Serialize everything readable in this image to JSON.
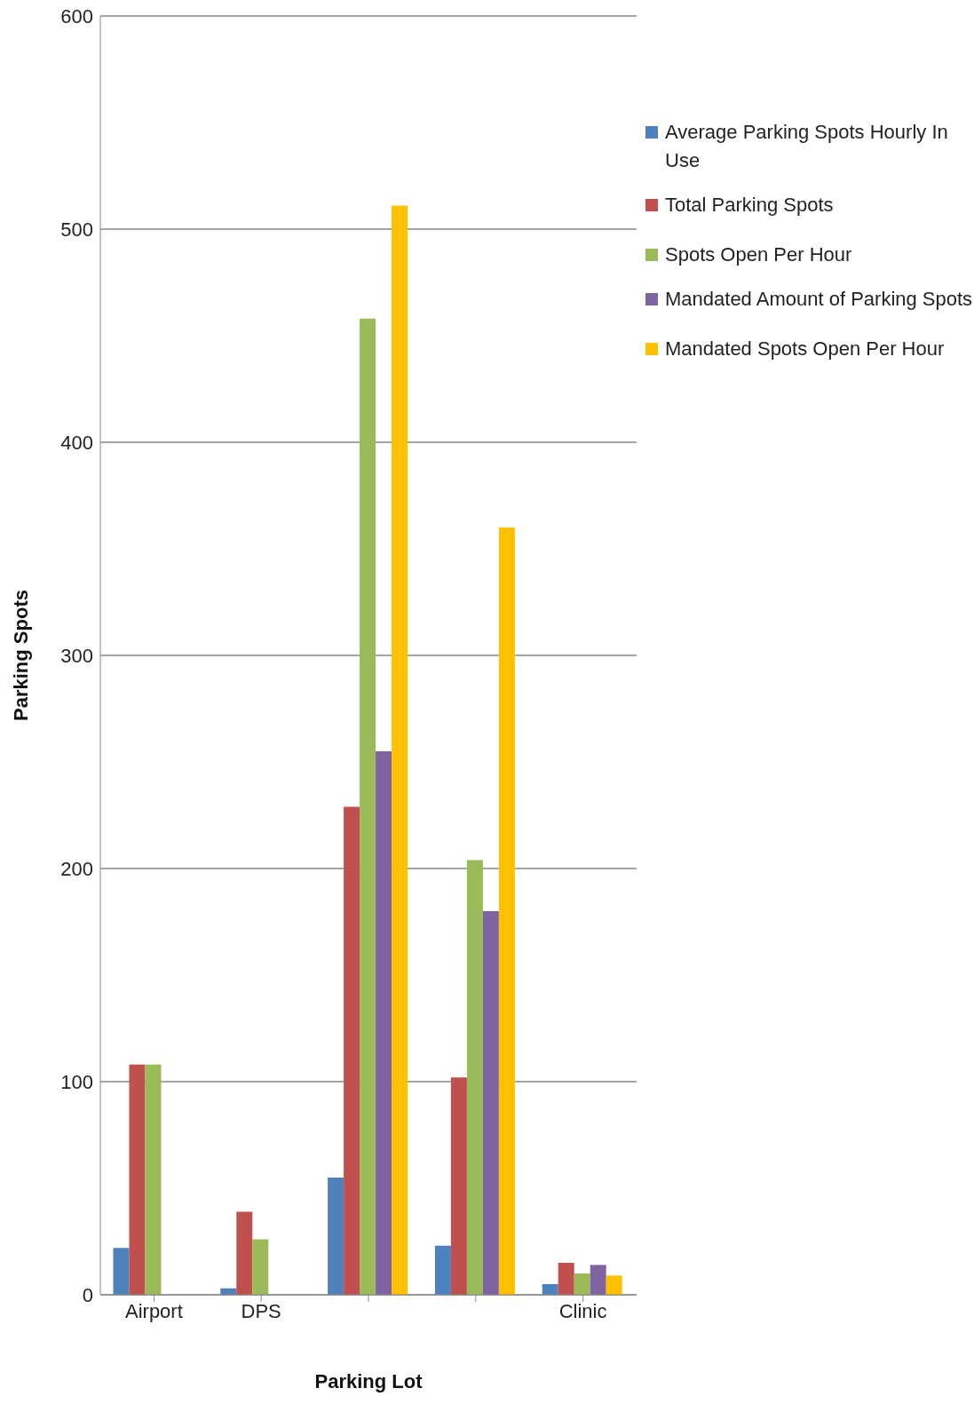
{
  "chart_data": {
    "type": "bar",
    "xlabel": "Parking Lot",
    "ylabel": "Parking Spots",
    "categories": [
      "Airport",
      "DPS",
      null,
      null,
      "Clinic"
    ],
    "series": [
      {
        "name": "Average Parking Spots Hourly In Use",
        "color": "#4f81bd",
        "values": [
          22,
          3,
          55,
          23,
          5
        ]
      },
      {
        "name": "Total Parking Spots",
        "color": "#c0504d",
        "values": [
          108,
          39,
          229,
          102,
          15
        ]
      },
      {
        "name": "Spots Open Per Hour",
        "color": "#9bbb59",
        "values": [
          108,
          26,
          458,
          204,
          10
        ]
      },
      {
        "name": "Mandated Amount of Parking Spots",
        "color": "#8064a2",
        "values": [
          0,
          0,
          255,
          180,
          14
        ]
      },
      {
        "name": "Mandated Spots Open Per Hour",
        "color": "#ffc000",
        "values": [
          0,
          0,
          511,
          360,
          9
        ]
      }
    ],
    "ylim": [
      0,
      600
    ],
    "yticks": [
      0,
      100,
      200,
      300,
      400,
      500,
      600
    ],
    "grid": "y",
    "legend": "right"
  }
}
